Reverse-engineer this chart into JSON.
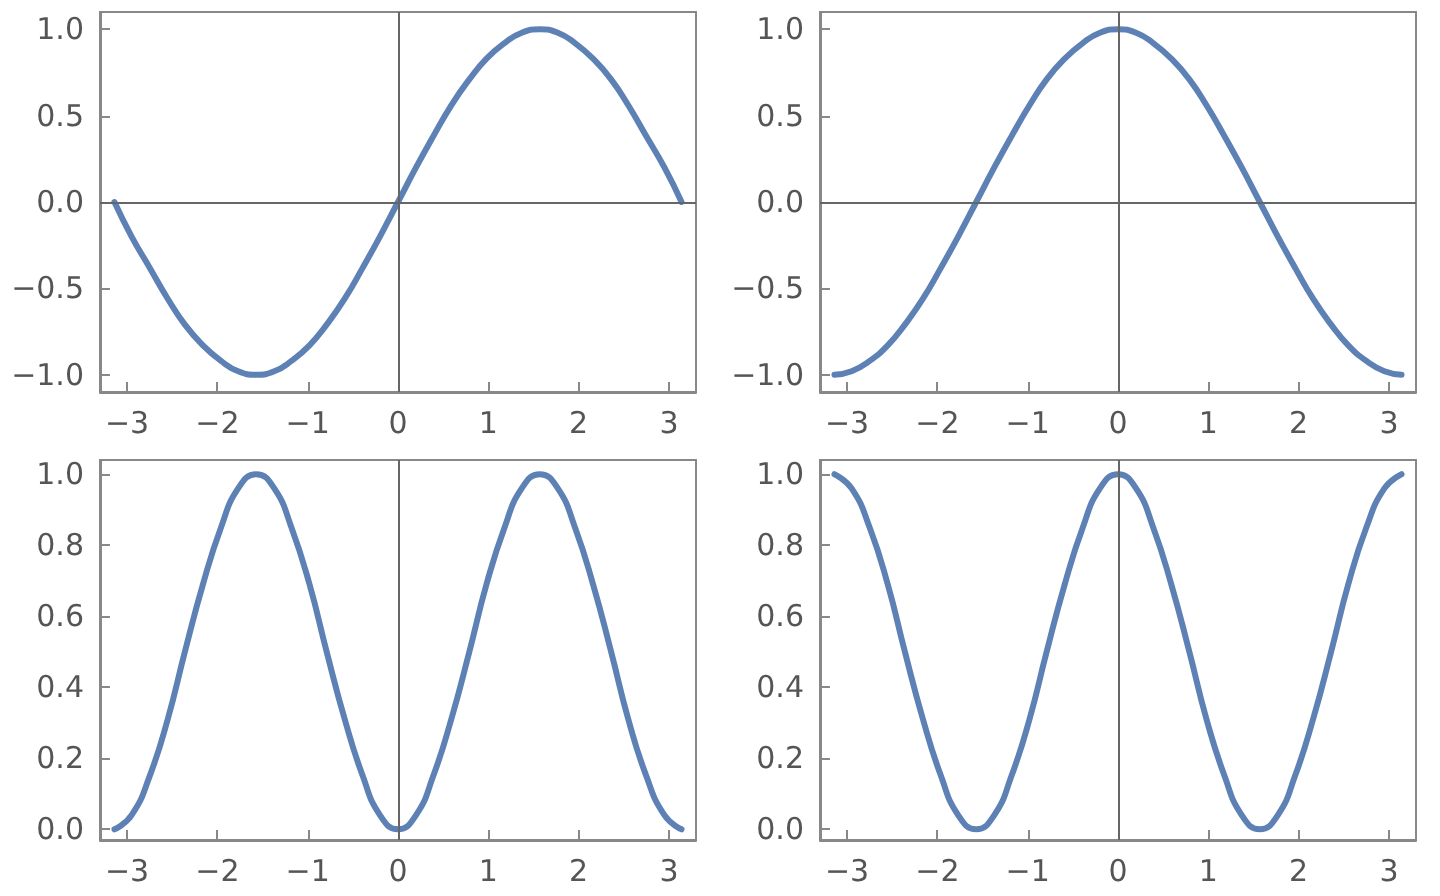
{
  "chart_data": [
    {
      "type": "line",
      "x": [
        -3.14,
        -2.95,
        -2.75,
        -2.55,
        -2.36,
        -2.16,
        -1.96,
        -1.77,
        -1.57,
        -1.37,
        -1.18,
        -0.98,
        -0.79,
        -0.59,
        -0.39,
        -0.2,
        0,
        0.2,
        0.39,
        0.59,
        0.79,
        0.98,
        1.18,
        1.37,
        1.57,
        1.77,
        1.96,
        2.16,
        2.36,
        2.55,
        2.75,
        2.95,
        3.14
      ],
      "series": [
        {
          "color": "#5e81b5",
          "values": [
            0,
            -0.2,
            -0.38,
            -0.56,
            -0.71,
            -0.83,
            -0.92,
            -0.98,
            -1,
            -0.98,
            -0.92,
            -0.83,
            -0.71,
            -0.56,
            -0.38,
            -0.2,
            0,
            0.2,
            0.38,
            0.56,
            0.71,
            0.83,
            0.92,
            0.98,
            1,
            0.98,
            0.92,
            0.83,
            0.71,
            0.56,
            0.38,
            0.2,
            0
          ]
        }
      ],
      "xlim": [
        -3.3,
        3.3
      ],
      "xticks": [
        {
          "value": -3,
          "label": "−3"
        },
        {
          "value": -2,
          "label": "−2"
        },
        {
          "value": -1,
          "label": "−1"
        },
        0,
        1,
        2,
        3
      ],
      "ylim": [
        -1.1,
        1.1
      ],
      "yticks": [
        {
          "value": -1,
          "label": "−1.0"
        },
        {
          "value": -0.5,
          "label": "−0.5"
        },
        {
          "value": 0,
          "label": "0.0"
        },
        0.5,
        {
          "value": 1,
          "label": "1.0"
        }
      ],
      "ref_lines": [
        {
          "axis": "x",
          "value": 0
        },
        {
          "axis": "y",
          "value": 0
        }
      ],
      "grid": false,
      "marker": "none",
      "line_style": "solid"
    },
    {
      "type": "line",
      "x": [
        -3.14,
        -2.95,
        -2.75,
        -2.55,
        -2.36,
        -2.16,
        -1.96,
        -1.77,
        -1.57,
        -1.37,
        -1.18,
        -0.98,
        -0.79,
        -0.59,
        -0.39,
        -0.2,
        0,
        0.2,
        0.39,
        0.59,
        0.79,
        0.98,
        1.18,
        1.37,
        1.57,
        1.77,
        1.96,
        2.16,
        2.36,
        2.55,
        2.75,
        2.95,
        3.14
      ],
      "series": [
        {
          "color": "#5e81b5",
          "values": [
            -1,
            -0.98,
            -0.92,
            -0.83,
            -0.71,
            -0.56,
            -0.38,
            -0.2,
            0,
            0.2,
            0.38,
            0.56,
            0.71,
            0.83,
            0.92,
            0.98,
            1,
            0.98,
            0.92,
            0.83,
            0.71,
            0.56,
            0.38,
            0.2,
            0,
            -0.2,
            -0.38,
            -0.56,
            -0.71,
            -0.83,
            -0.92,
            -0.98,
            -1
          ]
        }
      ],
      "xlim": [
        -3.3,
        3.3
      ],
      "xticks": [
        {
          "value": -3,
          "label": "−3"
        },
        {
          "value": -2,
          "label": "−2"
        },
        {
          "value": -1,
          "label": "−1"
        },
        0,
        1,
        2,
        3
      ],
      "ylim": [
        -1.1,
        1.1
      ],
      "yticks": [
        {
          "value": -1,
          "label": "−1.0"
        },
        {
          "value": -0.5,
          "label": "−0.5"
        },
        {
          "value": 0,
          "label": "0.0"
        },
        0.5,
        {
          "value": 1,
          "label": "1.0"
        }
      ],
      "ref_lines": [
        {
          "axis": "x",
          "value": 0
        },
        {
          "axis": "y",
          "value": 0
        }
      ],
      "grid": false,
      "marker": "none",
      "line_style": "solid"
    },
    {
      "type": "line",
      "x": [
        -3.14,
        -2.95,
        -2.75,
        -2.55,
        -2.36,
        -2.16,
        -1.96,
        -1.77,
        -1.57,
        -1.37,
        -1.18,
        -0.98,
        -0.79,
        -0.59,
        -0.39,
        -0.2,
        0,
        0.2,
        0.39,
        0.59,
        0.79,
        0.98,
        1.18,
        1.37,
        1.57,
        1.77,
        1.96,
        2.16,
        2.36,
        2.55,
        2.75,
        2.95,
        3.14
      ],
      "series": [
        {
          "color": "#5e81b5",
          "values": [
            0,
            0.04,
            0.15,
            0.31,
            0.5,
            0.69,
            0.85,
            0.96,
            1,
            0.96,
            0.85,
            0.69,
            0.5,
            0.31,
            0.15,
            0.04,
            0,
            0.04,
            0.15,
            0.31,
            0.5,
            0.69,
            0.85,
            0.96,
            1,
            0.96,
            0.85,
            0.69,
            0.5,
            0.31,
            0.15,
            0.04,
            0
          ]
        }
      ],
      "xlim": [
        -3.3,
        3.3
      ],
      "xticks": [
        {
          "value": -3,
          "label": "−3"
        },
        {
          "value": -2,
          "label": "−2"
        },
        {
          "value": -1,
          "label": "−1"
        },
        0,
        1,
        2,
        3
      ],
      "ylim": [
        -0.03,
        1.04
      ],
      "yticks": [
        {
          "value": 0,
          "label": "0.0"
        },
        0.2,
        0.4,
        0.6,
        0.8,
        {
          "value": 1,
          "label": "1.0"
        }
      ],
      "ref_lines": [
        {
          "axis": "x",
          "value": 0
        }
      ],
      "grid": false,
      "marker": "none",
      "line_style": "solid"
    },
    {
      "type": "line",
      "x": [
        -3.14,
        -2.95,
        -2.75,
        -2.55,
        -2.36,
        -2.16,
        -1.96,
        -1.77,
        -1.57,
        -1.37,
        -1.18,
        -0.98,
        -0.79,
        -0.59,
        -0.39,
        -0.2,
        0,
        0.2,
        0.39,
        0.59,
        0.79,
        0.98,
        1.18,
        1.37,
        1.57,
        1.77,
        1.96,
        2.16,
        2.36,
        2.55,
        2.75,
        2.95,
        3.14
      ],
      "series": [
        {
          "color": "#5e81b5",
          "values": [
            1,
            0.96,
            0.85,
            0.69,
            0.5,
            0.31,
            0.15,
            0.04,
            0,
            0.04,
            0.15,
            0.31,
            0.5,
            0.69,
            0.85,
            0.96,
            1,
            0.96,
            0.85,
            0.69,
            0.5,
            0.31,
            0.15,
            0.04,
            0,
            0.04,
            0.15,
            0.31,
            0.5,
            0.69,
            0.85,
            0.96,
            1
          ]
        }
      ],
      "xlim": [
        -3.3,
        3.3
      ],
      "xticks": [
        {
          "value": -3,
          "label": "−3"
        },
        {
          "value": -2,
          "label": "−2"
        },
        {
          "value": -1,
          "label": "−1"
        },
        0,
        1,
        2,
        3
      ],
      "ylim": [
        -0.03,
        1.04
      ],
      "yticks": [
        {
          "value": 0,
          "label": "0.0"
        },
        0.2,
        0.4,
        0.6,
        0.8,
        {
          "value": 1,
          "label": "1.0"
        }
      ],
      "ref_lines": [
        {
          "axis": "x",
          "value": 0
        }
      ],
      "grid": false,
      "marker": "none",
      "line_style": "solid"
    }
  ]
}
